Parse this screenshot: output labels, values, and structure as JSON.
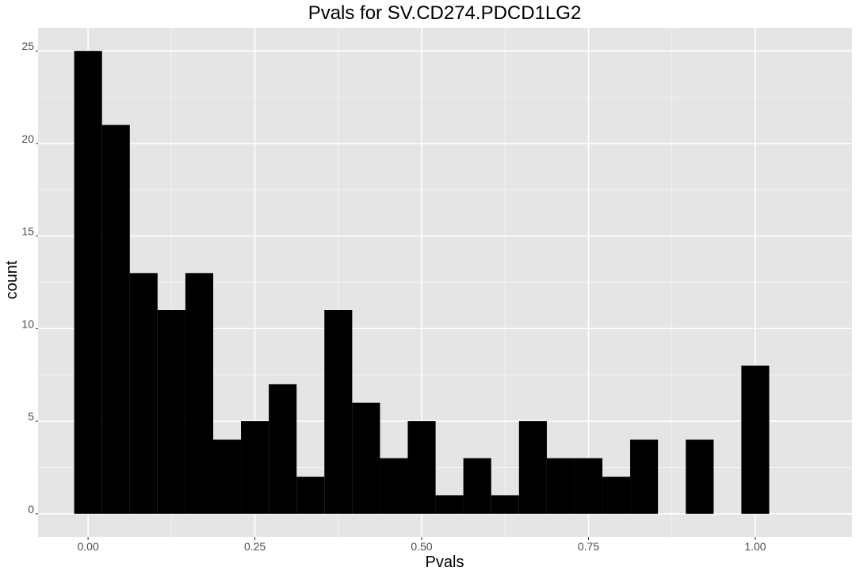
{
  "chart_data": {
    "type": "bar",
    "title": "Pvals for SV.CD274.PDCD1LG2",
    "xlabel": "Pvals",
    "ylabel": "count",
    "xlim": [
      -0.075,
      1.145
    ],
    "ylim": [
      -1.25,
      26.25
    ],
    "grid": true,
    "legend": "none",
    "bin_width": 0.0417,
    "bin_centers": [
      0.0,
      0.0417,
      0.0833,
      0.125,
      0.1667,
      0.2083,
      0.25,
      0.2917,
      0.3333,
      0.375,
      0.4167,
      0.4583,
      0.5,
      0.5417,
      0.5833,
      0.625,
      0.6667,
      0.7083,
      0.75,
      0.7917,
      0.8333,
      0.875,
      0.9167,
      0.9583,
      1.0
    ],
    "values": [
      25,
      21,
      13,
      11,
      13,
      4,
      5,
      7,
      2,
      11,
      6,
      3,
      5,
      1,
      3,
      1,
      5,
      3,
      3,
      2,
      4,
      0,
      4,
      0,
      8
    ],
    "x_ticks": [
      0.0,
      0.25,
      0.5,
      0.75,
      1.0
    ],
    "x_tick_labels": [
      "0.00",
      "0.25",
      "0.50",
      "0.75",
      "1.00"
    ],
    "y_ticks": [
      0,
      5,
      10,
      15,
      20,
      25
    ],
    "y_tick_labels": [
      "0",
      "5",
      "10",
      "15",
      "20",
      "25"
    ],
    "colors": {
      "panel_background": "#e5e5e5",
      "grid_major": "#ffffff",
      "grid_minor": "#f2f2f2",
      "bar_fill": "#000000"
    }
  }
}
